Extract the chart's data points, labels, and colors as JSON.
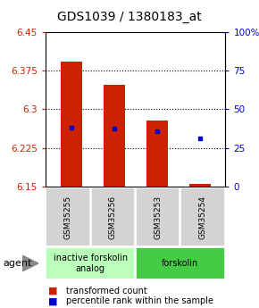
{
  "title": "GDS1039 / 1380183_at",
  "samples": [
    "GSM35255",
    "GSM35256",
    "GSM35253",
    "GSM35254"
  ],
  "bar_bottoms": [
    6.15,
    6.15,
    6.15,
    6.15
  ],
  "bar_tops": [
    6.393,
    6.347,
    6.278,
    6.155
  ],
  "blue_y": [
    6.265,
    6.263,
    6.258,
    6.243
  ],
  "ylim": [
    6.15,
    6.45
  ],
  "yticks_left": [
    6.15,
    6.225,
    6.3,
    6.375,
    6.45
  ],
  "ytick_left_labels": [
    "6.15",
    "6.225",
    "6.3",
    "6.375",
    "6.45"
  ],
  "yticks_right_pct": [
    0,
    25,
    50,
    75,
    100
  ],
  "ytick_right_labels": [
    "0",
    "25",
    "50",
    "75",
    "100%"
  ],
  "bar_color": "#cc2200",
  "blue_color": "#0000cc",
  "groups": [
    {
      "label": "inactive forskolin\nanalog",
      "cols": [
        0,
        1
      ],
      "color": "#bbffbb"
    },
    {
      "label": "forskolin",
      "cols": [
        2,
        3
      ],
      "color": "#44cc44"
    }
  ],
  "agent_label": "agent",
  "legend_bar_label": "transformed count",
  "legend_blue_label": "percentile rank within the sample",
  "bar_width": 0.5,
  "title_fontsize": 10,
  "tick_fontsize": 7.5,
  "sample_fontsize": 6.5,
  "group_fontsize": 7,
  "legend_fontsize": 7
}
